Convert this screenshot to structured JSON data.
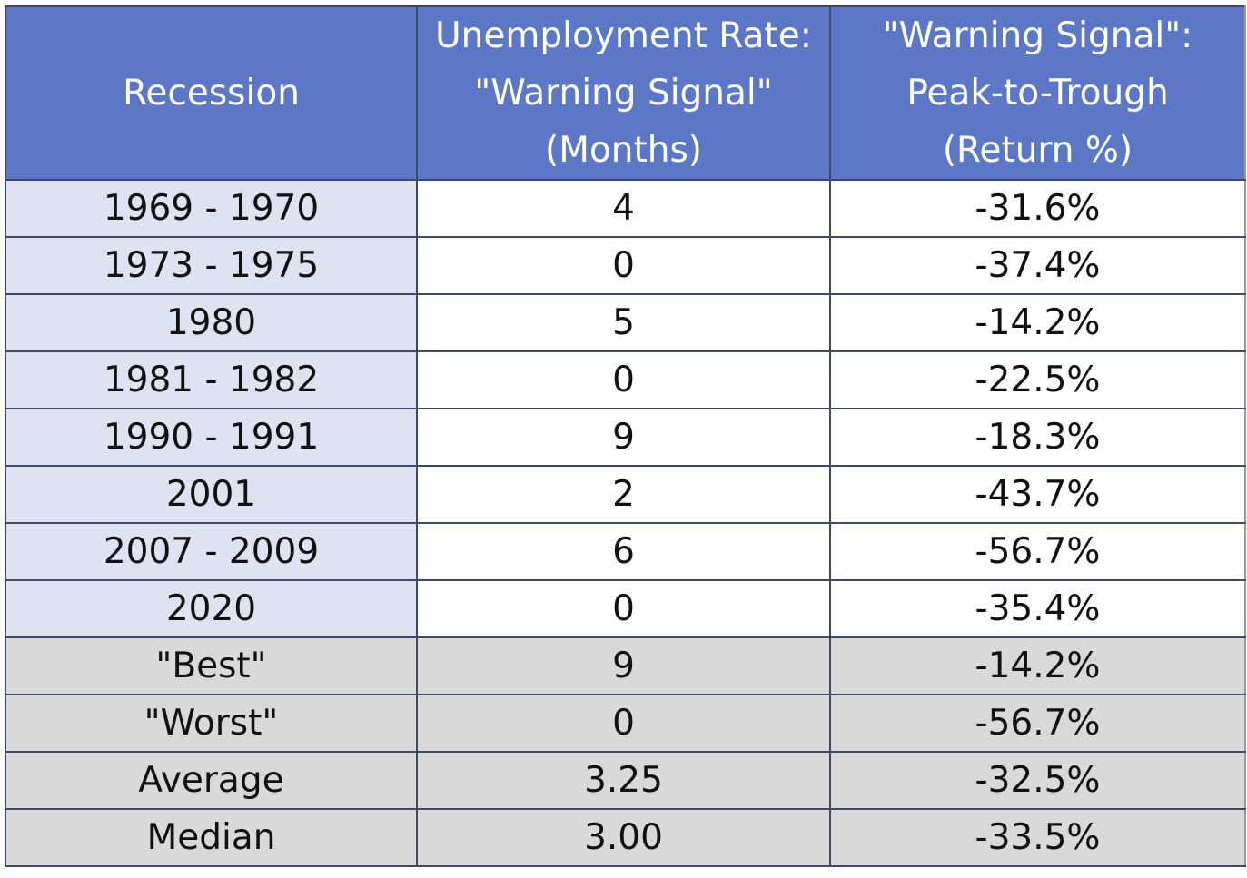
{
  "chart_data": {
    "type": "table",
    "columns": [
      [
        "Recession"
      ],
      [
        "Unemployment Rate:",
        "\"Warning Signal\"",
        "(Months)"
      ],
      [
        "\"Warning Signal\":",
        "Peak-to-Trough",
        "(Return %)"
      ]
    ],
    "rows": [
      [
        "1969 - 1970",
        "4",
        "-31.6%"
      ],
      [
        "1973 - 1975",
        "0",
        "-37.4%"
      ],
      [
        "1980",
        "5",
        "-14.2%"
      ],
      [
        "1981 - 1982",
        "0",
        "-22.5%"
      ],
      [
        "1990 - 1991",
        "9",
        "-18.3%"
      ],
      [
        "2001",
        "2",
        "-43.7%"
      ],
      [
        "2007 - 2009",
        "6",
        "-56.7%"
      ],
      [
        "2020",
        "0",
        "-35.4%"
      ]
    ],
    "summary_rows": [
      [
        "\"Best\"",
        "9",
        "-14.2%"
      ],
      [
        "\"Worst\"",
        "0",
        "-56.7%"
      ],
      [
        "Average",
        "3.25",
        "-32.5%"
      ],
      [
        "Median",
        "3.00",
        "-33.5%"
      ]
    ]
  },
  "colors": {
    "header_bg": "#5b77c6",
    "header_text": "#ffffff",
    "label_column_bg": "#dfe3f1",
    "summary_bg": "#d9d9d9",
    "border": "#3e4a66"
  }
}
